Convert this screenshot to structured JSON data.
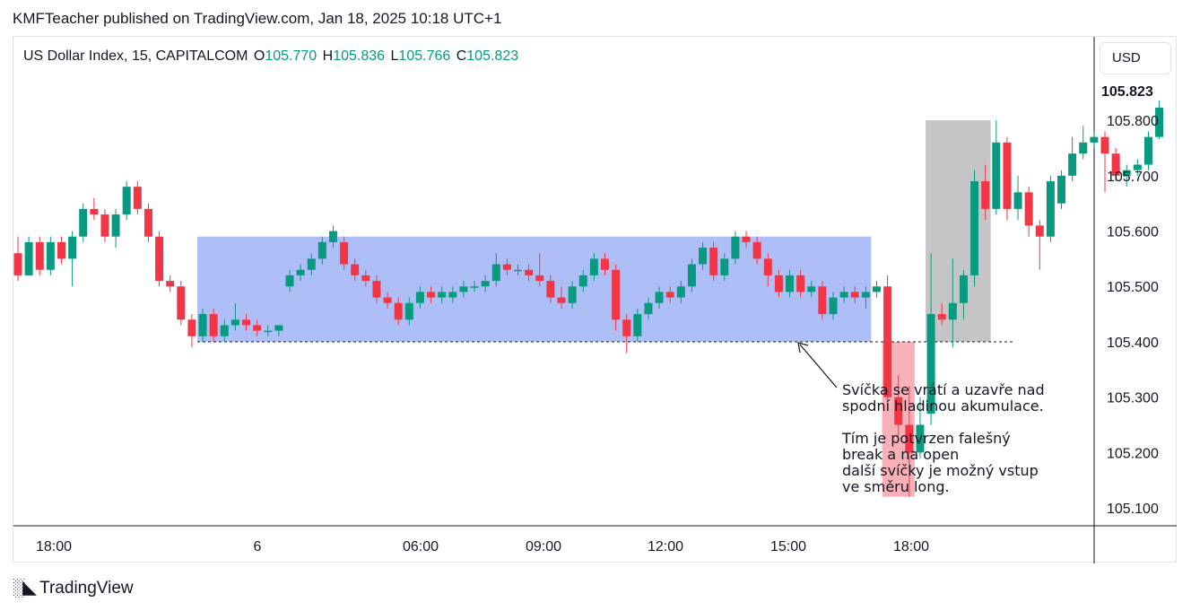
{
  "header": {
    "published": "KMFTeacher published on TradingView.com, Jan 18, 2025 10:18 UTC+1"
  },
  "legend": {
    "symbol": "US Dollar Index, 15, CAPITALCOM",
    "open_label": "O",
    "open": "105.770",
    "high_label": "H",
    "high": "105.836",
    "low_label": "L",
    "low": "105.766",
    "close_label": "C",
    "close": "105.823"
  },
  "currency_button": "USD",
  "last_price_label": "105.823",
  "annotation": "Svíčka se vrátí a uzavře nad\nspodní hladinou akumulace.\n\nTím je potvrzen falešný\nbreak a na open\ndalší svíčky je možný vstup\nve směru long.",
  "footer": {
    "brand": "TradingView"
  },
  "colors": {
    "up": "#089981",
    "down": "#f23645",
    "range_box": "#a4b8f5",
    "confirm_box": "#bfbfc2",
    "breakout_box": "#f7a9b0"
  },
  "chart_data": {
    "type": "candlestick",
    "title": "",
    "y_axis": {
      "ticks": [
        "105.100",
        "105.200",
        "105.300",
        "105.400",
        "105.500",
        "105.600",
        "105.700",
        "105.800"
      ],
      "range": [
        105.045,
        105.925
      ]
    },
    "x_axis": {
      "ticks": [
        "18:00",
        "6",
        "06:00",
        "09:00",
        "12:00",
        "15:00",
        "18:00"
      ]
    },
    "candles": [
      [
        105.56,
        105.52,
        105.59,
        105.51
      ],
      [
        105.52,
        105.58,
        105.59,
        105.52
      ],
      [
        105.58,
        105.53,
        105.59,
        105.52
      ],
      [
        105.53,
        105.58,
        105.59,
        105.52
      ],
      [
        105.58,
        105.55,
        105.59,
        105.54
      ],
      [
        105.55,
        105.59,
        105.6,
        105.5
      ],
      [
        105.59,
        105.64,
        105.65,
        105.58
      ],
      [
        105.64,
        105.63,
        105.66,
        105.62
      ],
      [
        105.63,
        105.59,
        105.64,
        105.58
      ],
      [
        105.59,
        105.63,
        105.64,
        105.57
      ],
      [
        105.63,
        105.68,
        105.69,
        105.62
      ],
      [
        105.68,
        105.64,
        105.69,
        105.63
      ],
      [
        105.64,
        105.59,
        105.65,
        105.58
      ],
      [
        105.59,
        105.51,
        105.6,
        105.5
      ],
      [
        105.51,
        105.5,
        105.52,
        105.49
      ],
      [
        105.5,
        105.44,
        105.51,
        105.43
      ],
      [
        105.44,
        105.41,
        105.45,
        105.39
      ],
      [
        105.41,
        105.45,
        105.46,
        105.4
      ],
      [
        105.45,
        105.41,
        105.46,
        105.4
      ],
      [
        105.41,
        105.43,
        105.44,
        105.4
      ],
      [
        105.43,
        105.44,
        105.47,
        105.42
      ],
      [
        105.44,
        105.43,
        105.45,
        105.42
      ],
      [
        105.43,
        105.42,
        105.44,
        105.41
      ],
      [
        105.42,
        105.42,
        105.43,
        105.41
      ],
      [
        105.42,
        105.43,
        105.43,
        105.41
      ],
      [
        105.5,
        105.52,
        105.53,
        105.49
      ],
      [
        105.52,
        105.53,
        105.54,
        105.51
      ],
      [
        105.53,
        105.55,
        105.56,
        105.52
      ],
      [
        105.55,
        105.58,
        105.59,
        105.54
      ],
      [
        105.58,
        105.6,
        105.61,
        105.57
      ],
      [
        105.58,
        105.54,
        105.59,
        105.53
      ],
      [
        105.54,
        105.52,
        105.55,
        105.51
      ],
      [
        105.52,
        105.51,
        105.53,
        105.5
      ],
      [
        105.51,
        105.48,
        105.52,
        105.47
      ],
      [
        105.48,
        105.47,
        105.49,
        105.46
      ],
      [
        105.47,
        105.44,
        105.48,
        105.43
      ],
      [
        105.44,
        105.47,
        105.48,
        105.43
      ],
      [
        105.47,
        105.49,
        105.5,
        105.46
      ],
      [
        105.49,
        105.48,
        105.5,
        105.47
      ],
      [
        105.48,
        105.49,
        105.5,
        105.47
      ],
      [
        105.48,
        105.49,
        105.5,
        105.47
      ],
      [
        105.49,
        105.5,
        105.51,
        105.48
      ],
      [
        105.5,
        105.5,
        105.51,
        105.49
      ],
      [
        105.5,
        105.51,
        105.52,
        105.49
      ],
      [
        105.51,
        105.54,
        105.56,
        105.5
      ],
      [
        105.54,
        105.53,
        105.55,
        105.52
      ],
      [
        105.53,
        105.53,
        105.54,
        105.52
      ],
      [
        105.53,
        105.52,
        105.54,
        105.51
      ],
      [
        105.52,
        105.51,
        105.56,
        105.5
      ],
      [
        105.51,
        105.48,
        105.52,
        105.47
      ],
      [
        105.48,
        105.47,
        105.5,
        105.46
      ],
      [
        105.47,
        105.5,
        105.51,
        105.46
      ],
      [
        105.5,
        105.52,
        105.53,
        105.49
      ],
      [
        105.52,
        105.55,
        105.56,
        105.51
      ],
      [
        105.55,
        105.53,
        105.56,
        105.52
      ],
      [
        105.53,
        105.44,
        105.54,
        105.42
      ],
      [
        105.44,
        105.41,
        105.45,
        105.38
      ],
      [
        105.41,
        105.45,
        105.46,
        105.4
      ],
      [
        105.45,
        105.47,
        105.48,
        105.44
      ],
      [
        105.47,
        105.49,
        105.5,
        105.46
      ],
      [
        105.49,
        105.48,
        105.5,
        105.47
      ],
      [
        105.48,
        105.5,
        105.51,
        105.47
      ],
      [
        105.5,
        105.54,
        105.55,
        105.49
      ],
      [
        105.54,
        105.57,
        105.58,
        105.53
      ],
      [
        105.57,
        105.52,
        105.58,
        105.51
      ],
      [
        105.52,
        105.55,
        105.56,
        105.51
      ],
      [
        105.55,
        105.59,
        105.6,
        105.54
      ],
      [
        105.59,
        105.58,
        105.6,
        105.57
      ],
      [
        105.58,
        105.55,
        105.59,
        105.54
      ],
      [
        105.55,
        105.52,
        105.56,
        105.5
      ],
      [
        105.52,
        105.49,
        105.53,
        105.48
      ],
      [
        105.49,
        105.52,
        105.53,
        105.48
      ],
      [
        105.52,
        105.49,
        105.53,
        105.48
      ],
      [
        105.49,
        105.5,
        105.51,
        105.48
      ],
      [
        105.5,
        105.45,
        105.51,
        105.44
      ],
      [
        105.45,
        105.48,
        105.49,
        105.44
      ],
      [
        105.48,
        105.49,
        105.5,
        105.47
      ],
      [
        105.49,
        105.48,
        105.5,
        105.47
      ],
      [
        105.48,
        105.49,
        105.5,
        105.46
      ],
      [
        105.49,
        105.5,
        105.51,
        105.48
      ],
      [
        105.5,
        105.3,
        105.52,
        105.29
      ],
      [
        105.3,
        105.25,
        105.34,
        105.23
      ],
      [
        105.25,
        105.2,
        105.32,
        105.12
      ],
      [
        105.2,
        105.25,
        105.3,
        105.19
      ],
      [
        105.27,
        105.45,
        105.56,
        105.25
      ],
      [
        105.45,
        105.44,
        105.47,
        105.43
      ],
      [
        105.44,
        105.47,
        105.55,
        105.39
      ],
      [
        105.47,
        105.52,
        105.53,
        105.44
      ],
      [
        105.52,
        105.69,
        105.71,
        105.5
      ],
      [
        105.69,
        105.64,
        105.72,
        105.62
      ],
      [
        105.64,
        105.76,
        105.8,
        105.63
      ],
      [
        105.76,
        105.64,
        105.77,
        105.62
      ],
      [
        105.64,
        105.67,
        105.7,
        105.62
      ],
      [
        105.67,
        105.61,
        105.68,
        105.59
      ],
      [
        105.61,
        105.59,
        105.62,
        105.53
      ],
      [
        105.59,
        105.69,
        105.7,
        105.58
      ],
      [
        105.65,
        105.7,
        105.71,
        105.64
      ],
      [
        105.7,
        105.74,
        105.77,
        105.69
      ],
      [
        105.74,
        105.76,
        105.79,
        105.73
      ],
      [
        105.76,
        105.77,
        105.78,
        105.75
      ],
      [
        105.77,
        105.74,
        105.78,
        105.67
      ],
      [
        105.74,
        105.7,
        105.75,
        105.69
      ],
      [
        105.7,
        105.71,
        105.72,
        105.68
      ],
      [
        105.71,
        105.72,
        105.73,
        105.7
      ],
      [
        105.72,
        105.77,
        105.78,
        105.71
      ],
      [
        105.77,
        105.823,
        105.836,
        105.766
      ]
    ],
    "annotations": {
      "accumulation_range": {
        "from_index": 17,
        "to_index": 78,
        "low": 105.4,
        "high": 105.59
      },
      "false_break_zone": {
        "from_index": 80,
        "to_index": 82,
        "low": 105.12,
        "high": 105.4
      },
      "confirmation_zone": {
        "from_index": 84,
        "to_index": 89,
        "low": 105.4,
        "high": 105.8
      },
      "support_line": {
        "from_index": 17,
        "to_index": 91,
        "value": 105.4
      }
    },
    "last_price": 105.823
  }
}
